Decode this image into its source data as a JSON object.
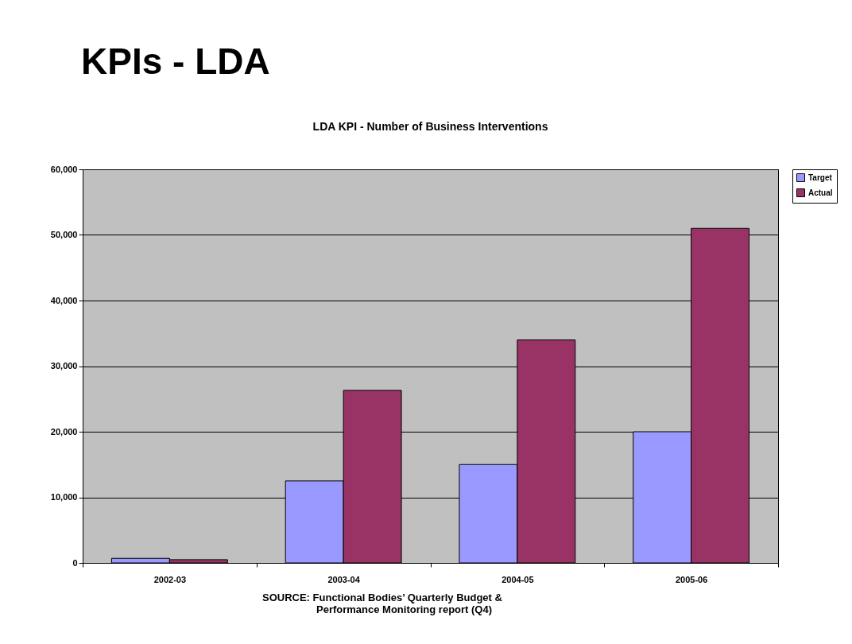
{
  "chart_data": {
    "type": "bar",
    "title": "KPIs - LDA",
    "subtitle": "LDA KPI - Number of Business Interventions",
    "categories": [
      "2002-03",
      "2003-04",
      "2004-05",
      "2005-06"
    ],
    "series": [
      {
        "name": "Target",
        "color": "#9999ff",
        "values": [
          700,
          12500,
          15000,
          20000
        ]
      },
      {
        "name": "Actual",
        "color": "#993366",
        "values": [
          500,
          26300,
          34000,
          51000
        ]
      }
    ],
    "ylim": [
      0,
      60000
    ],
    "yticks": [
      0,
      {
        "value": 10000,
        "label": "10,000"
      },
      {
        "value": 20000,
        "label": "20,000"
      },
      {
        "value": 30000,
        "label": "30,000"
      },
      {
        "value": 40000,
        "label": "40,000"
      },
      {
        "value": 50000,
        "label": "50,000"
      },
      {
        "value": 60000,
        "label": "60,000"
      }
    ],
    "grid": "y",
    "legend": "right",
    "annotations": [
      "SOURCE: Functional Bodies’ Quarterly Budget & Performance Monitoring report (Q4)"
    ]
  }
}
